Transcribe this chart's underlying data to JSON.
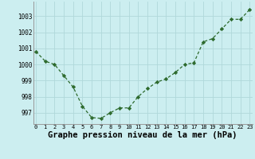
{
  "x": [
    0,
    1,
    2,
    3,
    4,
    5,
    6,
    7,
    8,
    9,
    10,
    11,
    12,
    13,
    14,
    15,
    16,
    17,
    18,
    19,
    20,
    21,
    22,
    23
  ],
  "y": [
    1000.8,
    1000.2,
    1000.0,
    999.3,
    998.6,
    997.4,
    996.7,
    996.65,
    997.0,
    997.3,
    997.3,
    998.0,
    998.5,
    998.9,
    999.1,
    999.5,
    1000.0,
    1000.1,
    1001.4,
    1001.6,
    1002.2,
    1002.8,
    1002.8,
    1003.4
  ],
  "line_color": "#2d6a2d",
  "marker_color": "#2d6a2d",
  "bg_color": "#cceef0",
  "grid_color": "#b0d8da",
  "xlabel": "Graphe pression niveau de la mer (hPa)",
  "xlabel_fontsize": 7.5,
  "ylabel_ticks": [
    997,
    998,
    999,
    1000,
    1001,
    1002,
    1003
  ],
  "xtick_labels": [
    "0",
    "1",
    "2",
    "3",
    "4",
    "5",
    "6",
    "7",
    "8",
    "9",
    "10",
    "11",
    "12",
    "13",
    "14",
    "15",
    "16",
    "17",
    "18",
    "19",
    "20",
    "21",
    "22",
    "23"
  ],
  "ylim": [
    996.3,
    1003.9
  ],
  "xlim": [
    -0.3,
    23.3
  ]
}
